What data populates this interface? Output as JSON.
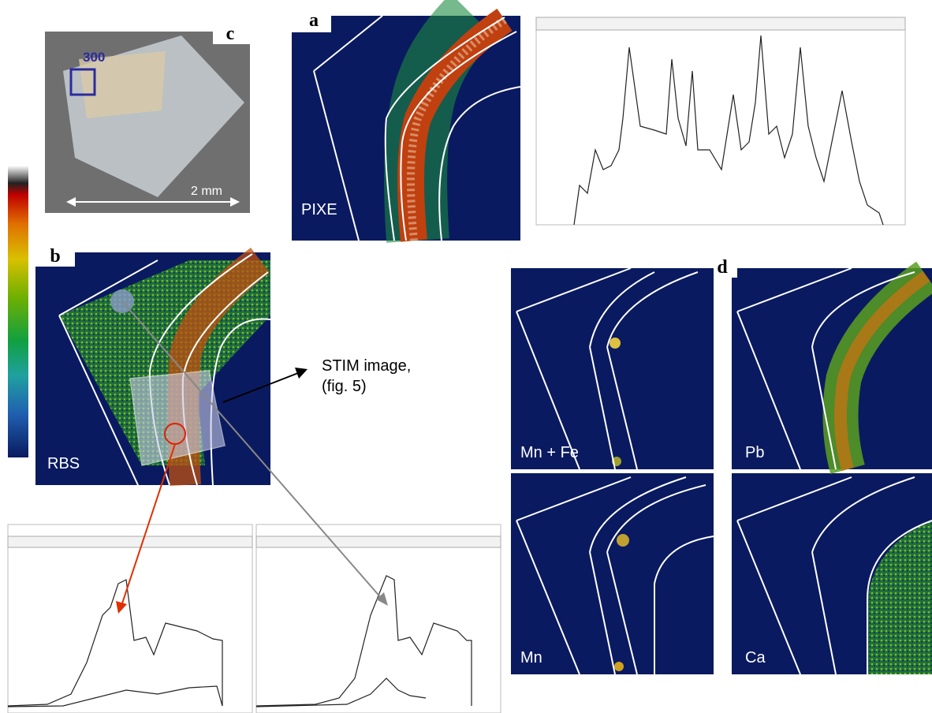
{
  "panels": {
    "c": {
      "label": "c",
      "box_label": "300",
      "scale": "2 mm"
    },
    "a": {
      "label": "a",
      "element": "PIXE"
    },
    "b": {
      "label": "b",
      "element": "RBS",
      "annotation": [
        "STIM image,",
        "(fig. 5)"
      ]
    },
    "d": {
      "label": "d",
      "maps": [
        "Mn + Fe",
        "Pb",
        "Mn",
        "Ca"
      ]
    }
  }
}
